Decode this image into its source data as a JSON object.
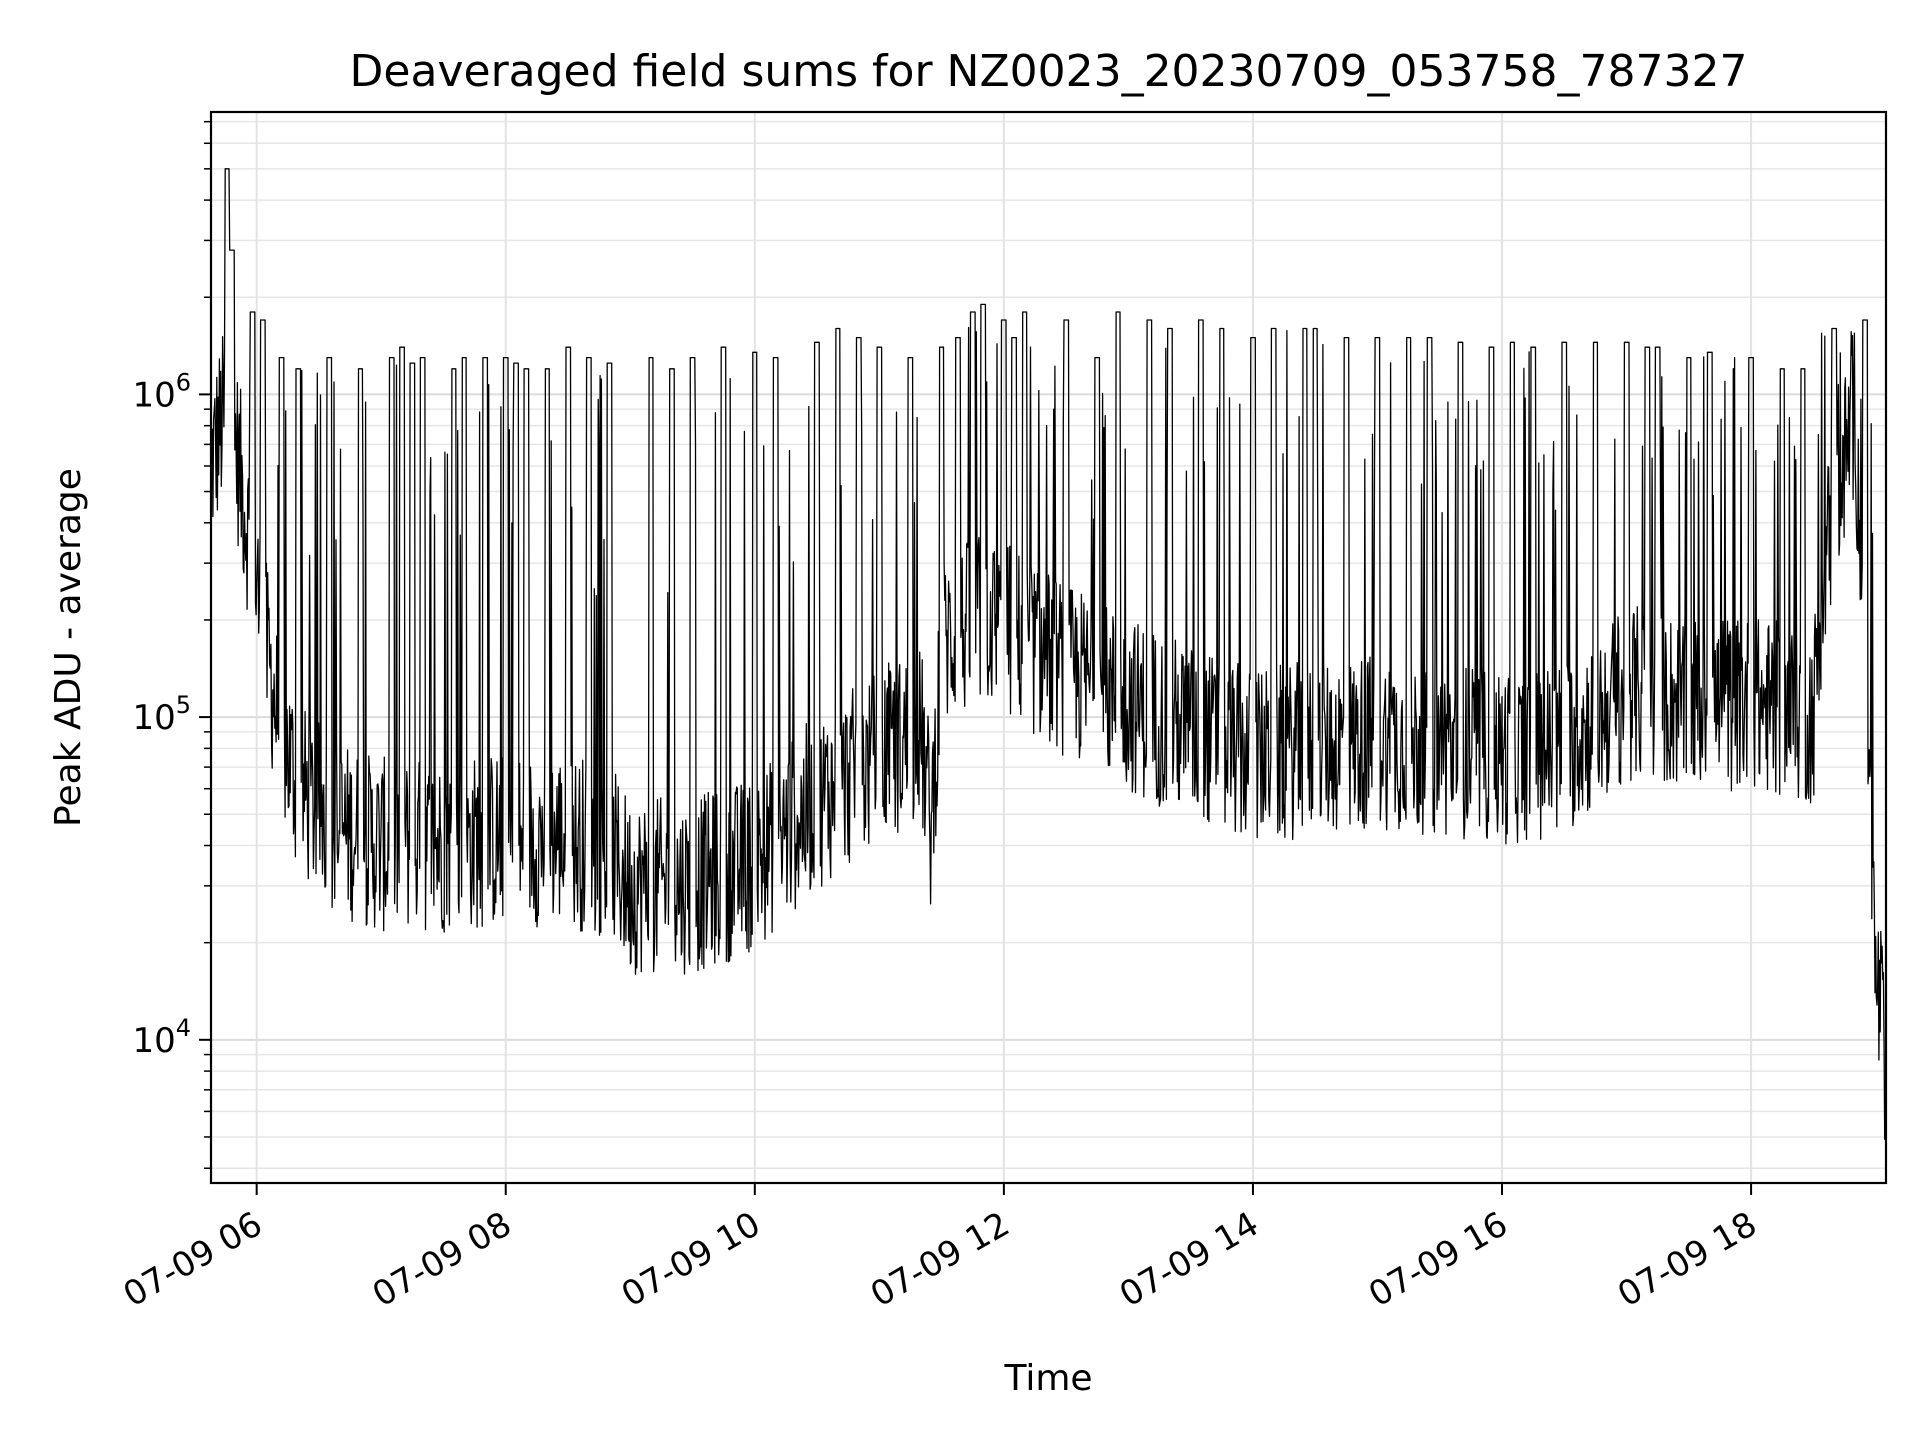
{
  "chart_data": {
    "type": "line",
    "title": "Deaveraged field sums for NZ0023_20230709_053758_787327",
    "xlabel": "Time",
    "ylabel": "Peak ADU - average",
    "yscale": "log",
    "xlim": [
      "07-09 05:38",
      "07-09 19:05"
    ],
    "ylim": [
      3600,
      7500000
    ],
    "grid": true,
    "line_color": "#000000",
    "x_ticks": [
      {
        "value": "07-09 06:00",
        "label": "07-09 06"
      },
      {
        "value": "07-09 08:00",
        "label": "07-09 08"
      },
      {
        "value": "07-09 10:00",
        "label": "07-09 10"
      },
      {
        "value": "07-09 12:00",
        "label": "07-09 12"
      },
      {
        "value": "07-09 14:00",
        "label": "07-09 14"
      },
      {
        "value": "07-09 16:00",
        "label": "07-09 16"
      },
      {
        "value": "07-09 18:00",
        "label": "07-09 18"
      }
    ],
    "y_ticks": [
      {
        "value": 10000,
        "base": "10",
        "exp": "4"
      },
      {
        "value": 100000,
        "base": "10",
        "exp": "5"
      },
      {
        "value": 1000000,
        "base": "10",
        "exp": "6"
      }
    ],
    "series": [
      {
        "baseline": {
          "x": [
            "07-09 05:38",
            "07-09 05:45",
            "07-09 05:50",
            "07-09 06:00",
            "07-09 06:10",
            "07-09 06:20",
            "07-09 06:40",
            "07-09 07:00",
            "07-09 07:30",
            "07-09 08:00",
            "07-09 08:30",
            "07-09 08:50",
            "07-09 09:00",
            "07-09 09:30",
            "07-09 10:00",
            "07-09 10:30",
            "07-09 11:00",
            "07-09 11:20",
            "07-09 11:25",
            "07-09 11:30",
            "07-09 11:50",
            "07-09 12:00",
            "07-09 12:30",
            "07-09 13:00",
            "07-09 13:30",
            "07-09 14:00",
            "07-09 14:30",
            "07-09 15:00",
            "07-09 15:30",
            "07-09 16:00",
            "07-09 16:30",
            "07-09 17:00",
            "07-09 17:30",
            "07-09 18:00",
            "07-09 18:30",
            "07-09 18:35",
            "07-09 18:50",
            "07-09 18:55",
            "07-09 19:00",
            "07-09 19:03",
            "07-09 19:05"
          ],
          "y": [
            600000,
            900000,
            700000,
            250000,
            100000,
            60000,
            45000,
            40000,
            40000,
            42000,
            42000,
            38000,
            30000,
            30000,
            35000,
            55000,
            75000,
            90000,
            45000,
            170000,
            200000,
            190000,
            140000,
            110000,
            90000,
            75000,
            80000,
            85000,
            80000,
            75000,
            80000,
            120000,
            110000,
            110000,
            100000,
            300000,
            900000,
            150000,
            15000,
            12000,
            5000
          ]
        },
        "spikes": {
          "x": [
            "07-09 05:46",
            "07-09 05:48",
            "07-09 05:58",
            "07-09 06:03",
            "07-09 06:12",
            "07-09 06:20",
            "07-09 06:35",
            "07-09 06:50",
            "07-09 07:05",
            "07-09 07:10",
            "07-09 07:15",
            "07-09 07:20",
            "07-09 07:35",
            "07-09 07:40",
            "07-09 07:50",
            "07-09 08:00",
            "07-09 08:05",
            "07-09 08:10",
            "07-09 08:20",
            "07-09 08:30",
            "07-09 08:40",
            "07-09 08:50",
            "07-09 09:10",
            "07-09 09:20",
            "07-09 09:30",
            "07-09 09:45",
            "07-09 10:00",
            "07-09 10:10",
            "07-09 10:30",
            "07-09 10:40",
            "07-09 10:50",
            "07-09 11:00",
            "07-09 11:15",
            "07-09 11:30",
            "07-09 11:38",
            "07-09 11:45",
            "07-09 11:50",
            "07-09 12:00",
            "07-09 12:05",
            "07-09 12:10",
            "07-09 12:30",
            "07-09 12:45",
            "07-09 12:55",
            "07-09 13:10",
            "07-09 13:20",
            "07-09 13:35",
            "07-09 13:45",
            "07-09 14:00",
            "07-09 14:10",
            "07-09 14:25",
            "07-09 14:30",
            "07-09 14:45",
            "07-09 15:00",
            "07-09 15:15",
            "07-09 15:25",
            "07-09 15:40",
            "07-09 15:55",
            "07-09 16:05",
            "07-09 16:15",
            "07-09 16:30",
            "07-09 16:45",
            "07-09 17:00",
            "07-09 17:10",
            "07-09 17:15",
            "07-09 17:30",
            "07-09 17:40",
            "07-09 18:00",
            "07-09 18:15",
            "07-09 18:25",
            "07-09 18:40",
            "07-09 18:55"
          ],
          "y": [
            5000000,
            2800000,
            1800000,
            1700000,
            1300000,
            1200000,
            1300000,
            1200000,
            1300000,
            1400000,
            1250000,
            1300000,
            1200000,
            1300000,
            1300000,
            1300000,
            1250000,
            1200000,
            1200000,
            1400000,
            1300000,
            1250000,
            1300000,
            1200000,
            1300000,
            1400000,
            1350000,
            1300000,
            1450000,
            1600000,
            1500000,
            1400000,
            1300000,
            1400000,
            1500000,
            1800000,
            1900000,
            1700000,
            1500000,
            1800000,
            1700000,
            1300000,
            1800000,
            1700000,
            1600000,
            1700000,
            1600000,
            1500000,
            1600000,
            1600000,
            1600000,
            1500000,
            1500000,
            1500000,
            1500000,
            1450000,
            1400000,
            1450000,
            1400000,
            1450000,
            1450000,
            1450000,
            1400000,
            1400000,
            1300000,
            1350000,
            1300000,
            1200000,
            1200000,
            1600000,
            1700000
          ]
        }
      }
    ]
  }
}
